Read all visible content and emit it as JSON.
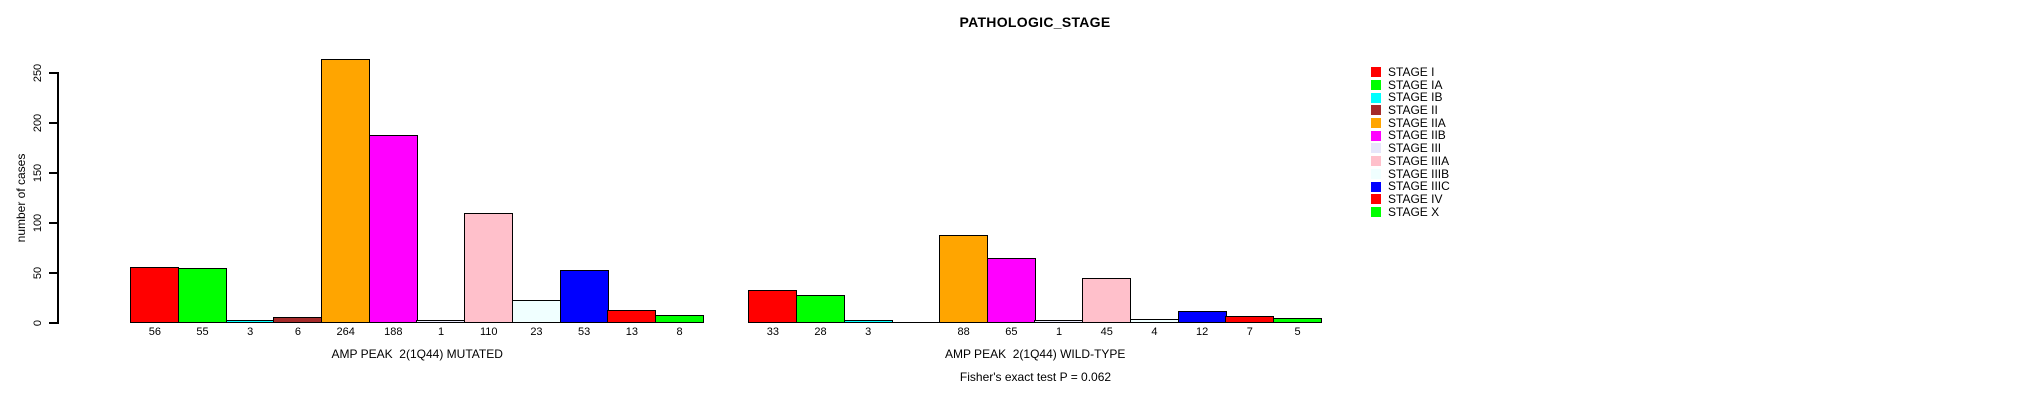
{
  "title": "PATHOLOGIC_STAGE",
  "y_axis": {
    "label": "number of cases",
    "ticks": [
      "0",
      "50",
      "100",
      "150",
      "200",
      "250"
    ]
  },
  "footer": "Fisher's exact test P = 0.062",
  "legend": [
    {
      "label": "STAGE I",
      "color": "#FF0000"
    },
    {
      "label": "STAGE IA",
      "color": "#00FF00"
    },
    {
      "label": "STAGE IB",
      "color": "#00FFFF"
    },
    {
      "label": "STAGE II",
      "color": "#A52A2A"
    },
    {
      "label": "STAGE IIA",
      "color": "#FFA500"
    },
    {
      "label": "STAGE IIB",
      "color": "#FF00FF"
    },
    {
      "label": "STAGE III",
      "color": "#E6E6FA"
    },
    {
      "label": "STAGE IIIA",
      "color": "#FFC0CB"
    },
    {
      "label": "STAGE IIIB",
      "color": "#F0FFFF"
    },
    {
      "label": "STAGE IIIC",
      "color": "#0000FF"
    },
    {
      "label": "STAGE IV",
      "color": "#FF0000"
    },
    {
      "label": "STAGE X",
      "color": "#00FF00"
    }
  ],
  "chart_data": {
    "type": "bar",
    "title": "PATHOLOGIC_STAGE",
    "ylabel": "number of cases",
    "ylim": [
      0,
      250
    ],
    "grid": false,
    "legend_position": "right",
    "categories": [
      "STAGE I",
      "STAGE IA",
      "STAGE IB",
      "STAGE II",
      "STAGE IIA",
      "STAGE IIB",
      "STAGE III",
      "STAGE IIIA",
      "STAGE IIIB",
      "STAGE IIIC",
      "STAGE IV",
      "STAGE X"
    ],
    "colors": [
      "#FF0000",
      "#00FF00",
      "#00FFFF",
      "#A52A2A",
      "#FFA500",
      "#FF00FF",
      "#E6E6FA",
      "#FFC0CB",
      "#F0FFFF",
      "#0000FF",
      "#FF0000",
      "#00FF00"
    ],
    "series": [
      {
        "name": "AMP PEAK  2(1Q44) MUTATED",
        "values": [
          56,
          55,
          3,
          6,
          264,
          188,
          1,
          110,
          23,
          53,
          13,
          8
        ]
      },
      {
        "name": "AMP PEAK  2(1Q44) WILD-TYPE",
        "values": [
          33,
          28,
          3,
          null,
          88,
          65,
          1,
          45,
          4,
          12,
          7,
          5
        ]
      }
    ],
    "annotation": "Fisher's exact test P = 0.062"
  }
}
